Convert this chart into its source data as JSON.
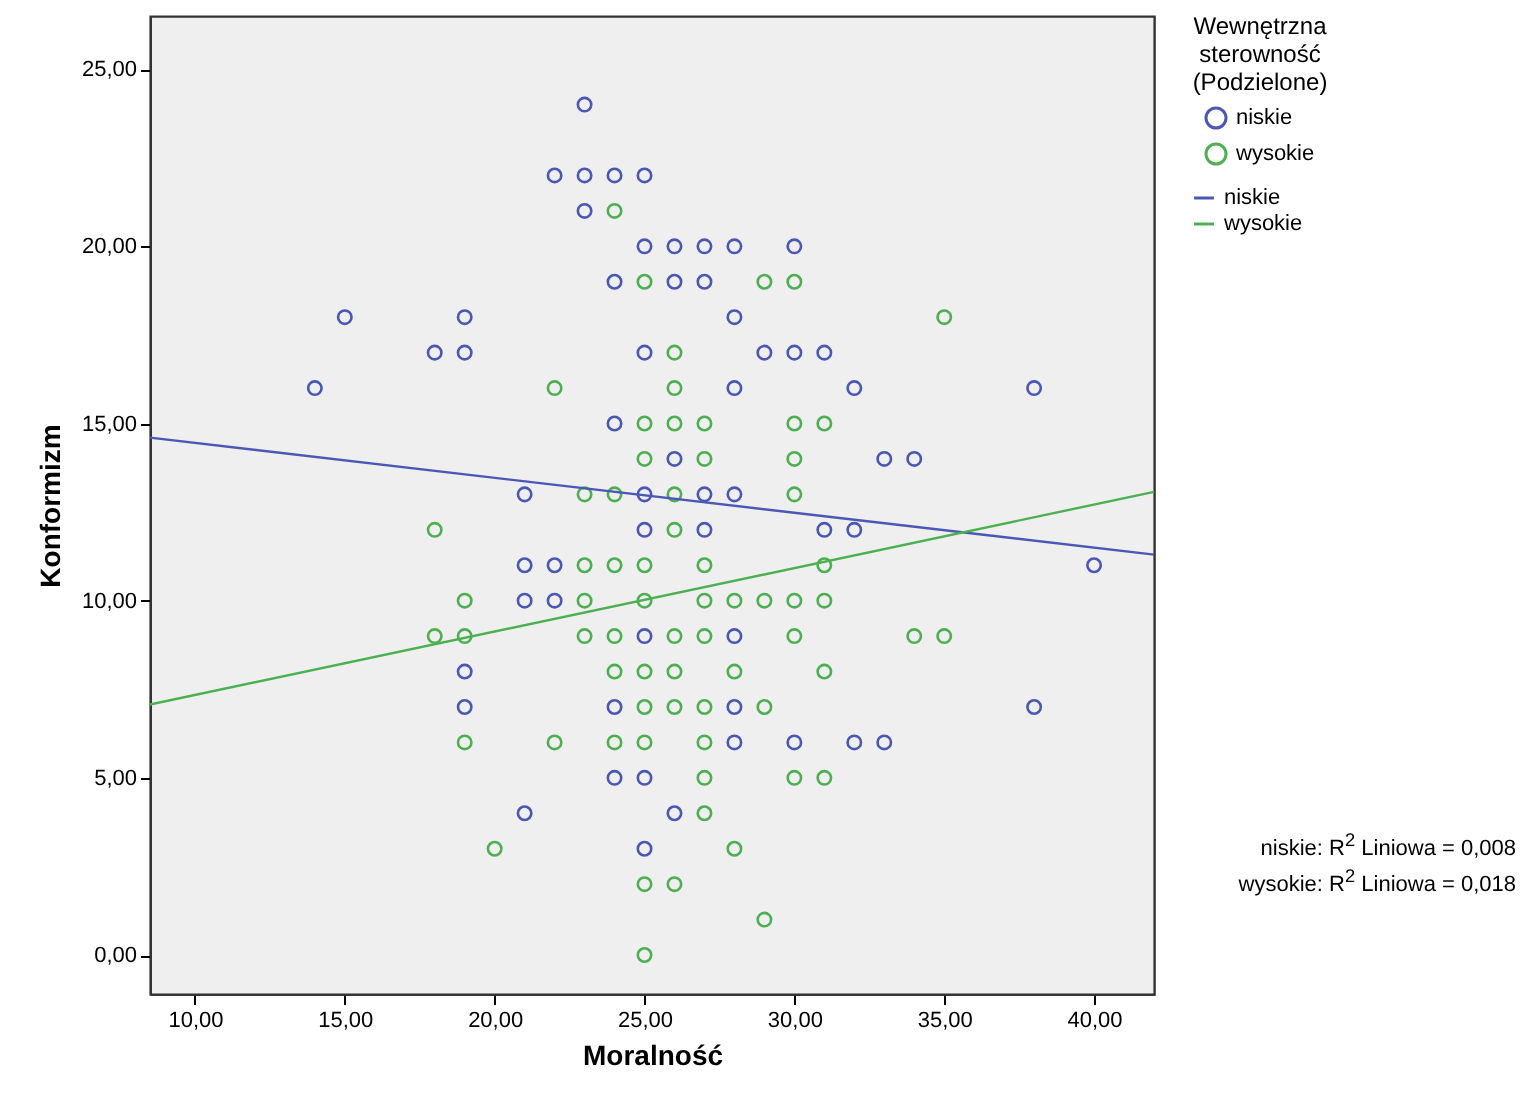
{
  "chart_data": {
    "type": "scatter",
    "xlabel": "Moralność",
    "ylabel": "Konformizm",
    "legend_title": "Wewnętrzna sterowność (Podzielone)",
    "legend": "right",
    "grid": false,
    "xlim": [
      8.5,
      42
    ],
    "ylim": [
      -1.1,
      26.5
    ],
    "xticks": [
      {
        "value": 10,
        "label": "10,00"
      },
      {
        "value": 15,
        "label": "15,00"
      },
      {
        "value": 20,
        "label": "20,00"
      },
      {
        "value": 25,
        "label": "25,00"
      },
      {
        "value": 30,
        "label": "30,00"
      },
      {
        "value": 35,
        "label": "35,00"
      },
      {
        "value": 40,
        "label": "40,00"
      }
    ],
    "yticks": [
      {
        "value": 0,
        "label": "0,00"
      },
      {
        "value": 5,
        "label": "5,00"
      },
      {
        "value": 10,
        "label": "10,00"
      },
      {
        "value": 15,
        "label": "15,00"
      },
      {
        "value": 20,
        "label": "20,00"
      },
      {
        "value": 25,
        "label": "25,00"
      }
    ],
    "series": [
      {
        "name": "niskie",
        "marker": "circle",
        "color": "#4a57b5",
        "x": [
          23,
          22,
          23,
          24,
          25,
          23,
          25,
          26,
          27,
          28,
          30,
          24,
          26,
          27,
          15,
          19,
          28,
          18,
          19,
          25,
          29,
          30,
          31,
          14,
          28,
          32,
          38,
          24,
          26,
          33,
          34,
          21,
          25,
          27,
          28,
          25,
          27,
          31,
          32,
          21,
          22,
          40,
          21,
          22,
          25,
          28,
          19,
          19,
          24,
          28,
          38,
          28,
          30,
          32,
          33,
          24,
          25,
          21,
          26,
          25
        ],
        "values": [
          24,
          22,
          22,
          22,
          22,
          21,
          20,
          20,
          20,
          20,
          20,
          19,
          19,
          19,
          18,
          18,
          18,
          17,
          17,
          17,
          17,
          17,
          17,
          16,
          16,
          16,
          16,
          15,
          14,
          14,
          14,
          13,
          13,
          13,
          13,
          12,
          12,
          12,
          12,
          11,
          11,
          11,
          10,
          10,
          9,
          9,
          8,
          7,
          7,
          7,
          7,
          6,
          6,
          6,
          6,
          5,
          5,
          4,
          4,
          3
        ]
      },
      {
        "name": "wysokie",
        "marker": "circle",
        "color": "#4cb050",
        "x": [
          24,
          25,
          29,
          30,
          35,
          26,
          22,
          26,
          25,
          26,
          27,
          30,
          31,
          25,
          27,
          30,
          23,
          24,
          26,
          30,
          18,
          26,
          23,
          24,
          25,
          27,
          31,
          19,
          23,
          25,
          27,
          28,
          29,
          30,
          31,
          18,
          19,
          23,
          24,
          26,
          27,
          30,
          34,
          35,
          24,
          25,
          26,
          28,
          31,
          25,
          26,
          27,
          29,
          19,
          22,
          24,
          25,
          27,
          27,
          30,
          31,
          27,
          20,
          28,
          25,
          26,
          29,
          25
        ],
        "values": [
          21,
          19,
          19,
          19,
          18,
          17,
          16,
          16,
          15,
          15,
          15,
          15,
          15,
          14,
          14,
          14,
          13,
          13,
          13,
          13,
          12,
          12,
          11,
          11,
          11,
          11,
          11,
          10,
          10,
          10,
          10,
          10,
          10,
          10,
          10,
          9,
          9,
          9,
          9,
          9,
          9,
          9,
          9,
          9,
          8,
          8,
          8,
          8,
          8,
          7,
          7,
          7,
          7,
          6,
          6,
          6,
          6,
          6,
          5,
          5,
          5,
          4,
          3,
          3,
          2,
          2,
          1,
          0
        ]
      },
      {
        "name": "niskie",
        "type": "line",
        "marker": "none",
        "color": "#4a57b5",
        "x": [
          8.5,
          42
        ],
        "values": [
          14.6,
          11.3
        ]
      },
      {
        "name": "wysokie",
        "type": "line",
        "marker": "none",
        "color": "#4cb050",
        "x": [
          8.5,
          42
        ],
        "values": [
          7.07,
          13.07
        ]
      }
    ],
    "annotations": [
      "niskie: R$^{2}$ Liniowa = 0,008",
      "wysokie: R$^{2}$ Liniowa = 0,018"
    ]
  }
}
